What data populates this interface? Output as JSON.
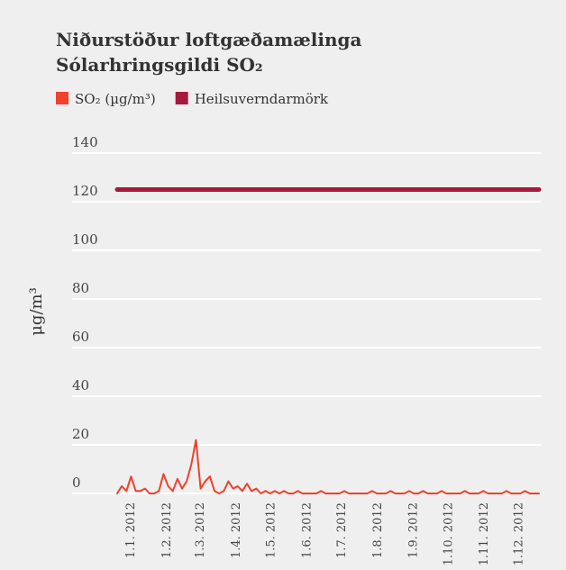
{
  "chart_data": {
    "type": "line",
    "title": "Niðurstöður loftgæðamælinga",
    "subtitle": "Sólarhringsgildi SO₂",
    "ylabel": "μg/m³",
    "ylim": [
      0,
      140
    ],
    "yticks": [
      0,
      20,
      40,
      60,
      80,
      100,
      120,
      140
    ],
    "grid": true,
    "xlim": [
      1,
      365
    ],
    "xticks": [
      {
        "value": 1,
        "label": "1.1. 2012"
      },
      {
        "value": 32,
        "label": "1.2. 2012"
      },
      {
        "value": 61,
        "label": "1.3. 2012"
      },
      {
        "value": 92,
        "label": "1.4. 2012"
      },
      {
        "value": 122,
        "label": "1.5. 2012"
      },
      {
        "value": 153,
        "label": "1.6. 2012"
      },
      {
        "value": 183,
        "label": "1.7. 2012"
      },
      {
        "value": 214,
        "label": "1.8. 2012"
      },
      {
        "value": 245,
        "label": "1.9. 2012"
      },
      {
        "value": 275,
        "label": "1.10. 2012"
      },
      {
        "value": 306,
        "label": "1.11. 2012"
      },
      {
        "value": 336,
        "label": "1.12. 2012"
      }
    ],
    "legend": "top-left",
    "series": [
      {
        "name": "SO₂ (µg/m³)",
        "color": "#f0412b",
        "x": [
          1,
          5,
          9,
          13,
          17,
          21,
          25,
          29,
          33,
          37,
          41,
          45,
          49,
          53,
          57,
          61,
          65,
          69,
          73,
          77,
          81,
          85,
          89,
          93,
          97,
          101,
          105,
          109,
          113,
          117,
          121,
          125,
          129,
          133,
          137,
          141,
          145,
          149,
          153,
          157,
          161,
          165,
          169,
          173,
          177,
          181,
          185,
          189,
          193,
          197,
          201,
          205,
          209,
          213,
          217,
          221,
          225,
          229,
          233,
          237,
          241,
          245,
          249,
          253,
          257,
          261,
          265,
          269,
          273,
          277,
          281,
          285,
          289,
          293,
          297,
          301,
          305,
          309,
          313,
          317,
          321,
          325,
          329,
          333,
          337,
          341,
          345,
          349,
          353,
          357,
          361,
          365
        ],
        "values": [
          0,
          3,
          1,
          7,
          1,
          1,
          2,
          0,
          0,
          1,
          8,
          3,
          1,
          6,
          2,
          5,
          12,
          22,
          2,
          5,
          7,
          1,
          0,
          1,
          5,
          2,
          3,
          1,
          4,
          1,
          2,
          0,
          1,
          0,
          1,
          0,
          1,
          0,
          0,
          1,
          0,
          0,
          0,
          0,
          1,
          0,
          0,
          0,
          0,
          1,
          0,
          0,
          0,
          0,
          0,
          1,
          0,
          0,
          0,
          1,
          0,
          0,
          0,
          1,
          0,
          0,
          1,
          0,
          0,
          0,
          1,
          0,
          0,
          0,
          0,
          1,
          0,
          0,
          0,
          1,
          0,
          0,
          0,
          0,
          1,
          0,
          0,
          0,
          1,
          0,
          0,
          0
        ]
      },
      {
        "name": "Heilsuverndarmörk",
        "color": "#a8173c",
        "x": [
          1,
          365
        ],
        "values": [
          125,
          125
        ]
      }
    ]
  }
}
